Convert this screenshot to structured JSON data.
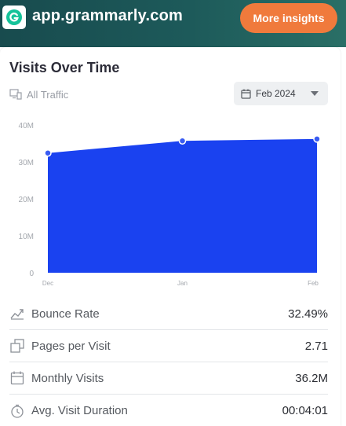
{
  "header": {
    "site": "app.grammarly.com",
    "cta_label": "More insights",
    "cta_color": "#f07a3c",
    "logo_icon": "grammarly-g-icon"
  },
  "card": {
    "title": "Visits Over Time",
    "traffic_filter": "All Traffic",
    "traffic_icon": "devices-icon",
    "date_selected": "Feb 2024",
    "date_icon": "calendar-icon"
  },
  "chart_data": {
    "type": "area",
    "x": [
      "Dec",
      "Jan",
      "Feb"
    ],
    "series": [
      {
        "values": [
          32.4,
          35.7,
          36.2
        ]
      }
    ],
    "y_ticks": [
      "0",
      "10M",
      "20M",
      "30M",
      "40M"
    ],
    "ylim": [
      0,
      40
    ],
    "y_unit": "M",
    "color": "#1a42f0",
    "grid": false,
    "legend": "none"
  },
  "metrics": [
    {
      "label": "Bounce Rate",
      "value": "32.49%",
      "icon": "trend-icon"
    },
    {
      "label": "Pages per Visit",
      "value": "2.71",
      "icon": "pages-icon"
    },
    {
      "label": "Monthly Visits",
      "value": "36.2M",
      "icon": "calendar-icon"
    },
    {
      "label": "Avg. Visit Duration",
      "value": "00:04:01",
      "icon": "timer-icon"
    }
  ]
}
